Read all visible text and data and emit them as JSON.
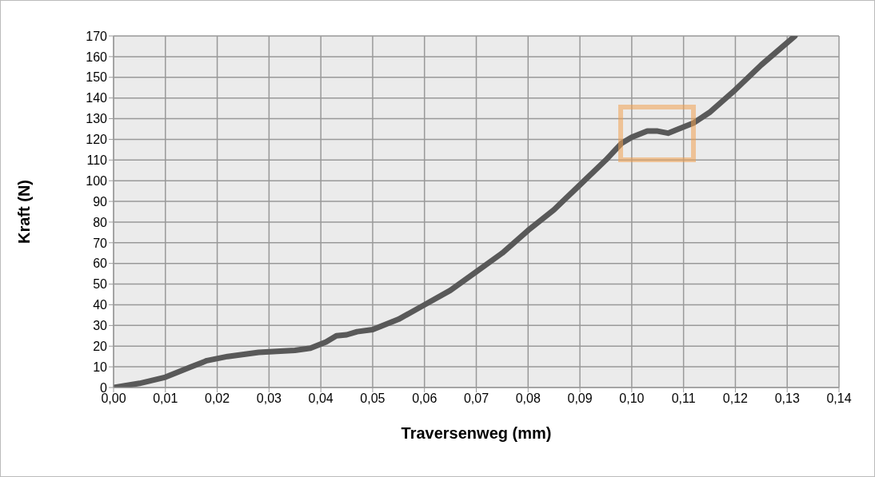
{
  "chart_data": {
    "type": "line",
    "xlabel": "Traversenweg (mm)",
    "ylabel": "Kraft (N)",
    "x": [
      0,
      0.005,
      0.01,
      0.015,
      0.018,
      0.022,
      0.028,
      0.035,
      0.038,
      0.041,
      0.043,
      0.045,
      0.047,
      0.05,
      0.055,
      0.06,
      0.065,
      0.07,
      0.075,
      0.08,
      0.085,
      0.09,
      0.095,
      0.098,
      0.1,
      0.103,
      0.105,
      0.107,
      0.109,
      0.112,
      0.115,
      0.12,
      0.125,
      0.1315
    ],
    "series": [
      {
        "color": "#595959",
        "values": [
          0,
          2,
          5,
          10,
          13,
          15,
          17,
          18,
          19,
          22,
          25,
          25.5,
          27,
          28,
          33,
          40,
          47,
          56,
          65,
          76,
          86,
          98,
          110,
          118,
          121,
          124,
          124,
          123,
          125,
          128,
          133,
          144,
          156,
          170
        ]
      }
    ],
    "xlim": [
      0,
      0.14
    ],
    "xticks": [
      {
        "value": 0,
        "label": "0,00"
      },
      {
        "value": 0.01,
        "label": "0,01"
      },
      {
        "value": 0.02,
        "label": "0,02"
      },
      {
        "value": 0.03,
        "label": "0,03"
      },
      {
        "value": 0.04,
        "label": "0,04"
      },
      {
        "value": 0.05,
        "label": "0,05"
      },
      {
        "value": 0.06,
        "label": "0,06"
      },
      {
        "value": 0.07,
        "label": "0,07"
      },
      {
        "value": 0.08,
        "label": "0,08"
      },
      {
        "value": 0.09,
        "label": "0,09"
      },
      {
        "value": 0.1,
        "label": "0,10"
      },
      {
        "value": 0.11,
        "label": "0,11"
      },
      {
        "value": 0.12,
        "label": "0,12"
      },
      {
        "value": 0.13,
        "label": "0,13"
      },
      {
        "value": 0.14,
        "label": "0,14"
      }
    ],
    "ylim": [
      0,
      170
    ],
    "yticks": [
      0,
      10,
      20,
      30,
      40,
      50,
      60,
      70,
      80,
      90,
      100,
      110,
      120,
      130,
      140,
      150,
      160,
      170
    ],
    "grid": true,
    "marker": "none",
    "line_style": "solid",
    "legend": false
  }
}
